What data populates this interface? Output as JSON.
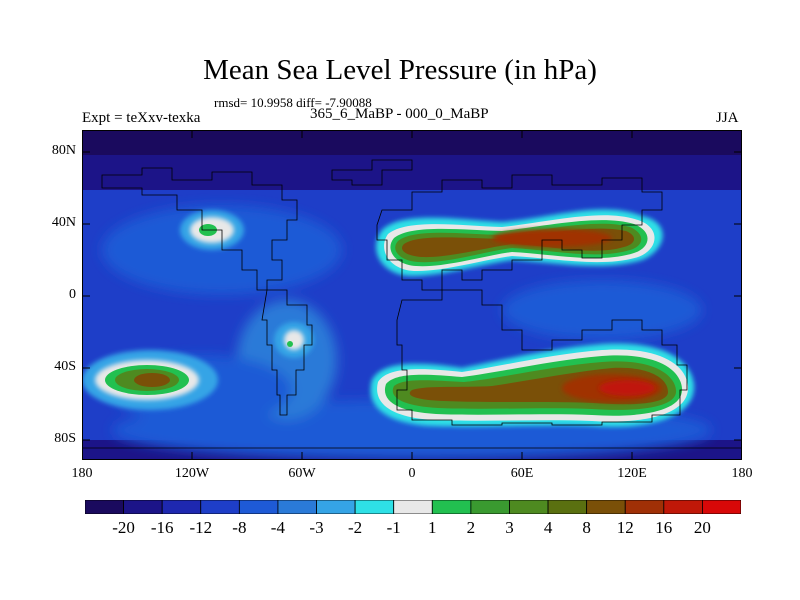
{
  "title": "Mean Sea Level Pressure (in hPa)",
  "stats": "rmsd= 10.9958 diff= -7.90088",
  "experiment": "Expt = teXxv-texka",
  "comparison": "365_6_MaBP - 000_0_MaBP",
  "season": "JJA",
  "lat_labels": [
    "80N",
    "40N",
    "0",
    "40S",
    "80S"
  ],
  "lon_labels": [
    "180",
    "120W",
    "60W",
    "0",
    "60E",
    "120E",
    "180"
  ],
  "colorbar": {
    "colors": [
      "#1a0a5e",
      "#1c1488",
      "#1e28b0",
      "#1e3ec8",
      "#1e5ad6",
      "#2a7ad8",
      "#35a4e6",
      "#2ee0e6",
      "#e8e8e8",
      "#22c050",
      "#3a9a30",
      "#4e8a20",
      "#5a7010",
      "#7a5008",
      "#a03006",
      "#c01808",
      "#d80808"
    ],
    "labels": [
      "-20",
      "-16",
      "-12",
      "-8",
      "-4",
      "-3",
      "-2",
      "-1",
      "1",
      "2",
      "3",
      "4",
      "8",
      "12",
      "16",
      "20"
    ]
  },
  "legend_label_note": ""
}
